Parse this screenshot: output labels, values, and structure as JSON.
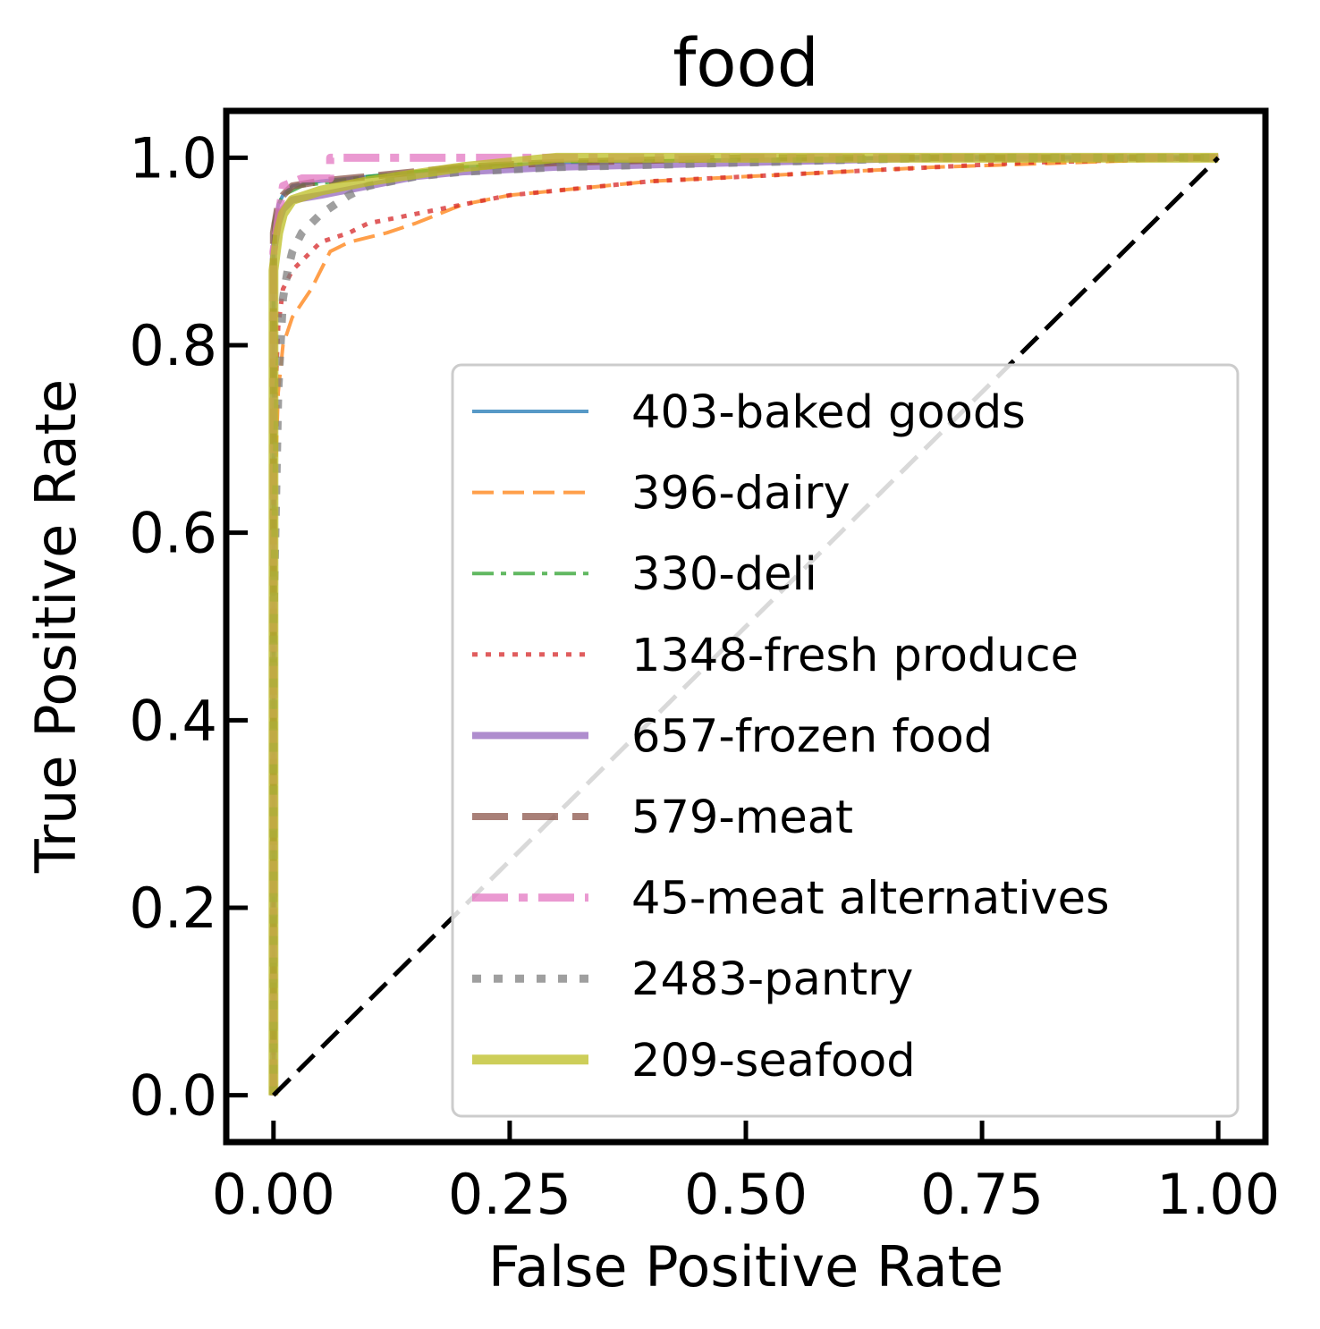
{
  "chart_data": {
    "type": "line",
    "title": "food",
    "xlabel": "False Positive Rate",
    "ylabel": "True Positive Rate",
    "xlim": [
      -0.05,
      1.05
    ],
    "ylim": [
      -0.05,
      1.05
    ],
    "xticks": [
      "0.00",
      "0.25",
      "0.50",
      "0.75",
      "1.00"
    ],
    "yticks": [
      "0.0",
      "0.2",
      "0.4",
      "0.6",
      "0.8",
      "1.0"
    ],
    "grid": false,
    "legend_position": "lower-right",
    "diagonal": {
      "x": [
        0,
        1
      ],
      "y": [
        0,
        1
      ],
      "color": "#000000",
      "style": "dashed"
    },
    "series": [
      {
        "name": "403-baked goods",
        "color": "#1f77b4",
        "dash": "solid",
        "width": 4,
        "x": [
          0,
          0,
          0.005,
          0.01,
          0.02,
          0.05,
          0.1,
          0.2,
          0.3,
          0.5,
          0.7,
          1.0
        ],
        "y": [
          0,
          0.92,
          0.95,
          0.96,
          0.97,
          0.975,
          0.98,
          0.99,
          0.995,
          0.998,
          1.0,
          1.0
        ]
      },
      {
        "name": "396-dairy",
        "color": "#ff7f0e",
        "dash": "dashed",
        "width": 4,
        "x": [
          0,
          0,
          0.005,
          0.01,
          0.02,
          0.04,
          0.06,
          0.08,
          0.12,
          0.15,
          0.2,
          0.25,
          0.3,
          0.4,
          0.5,
          0.7,
          1.0
        ],
        "y": [
          0,
          0.6,
          0.75,
          0.8,
          0.83,
          0.86,
          0.9,
          0.91,
          0.92,
          0.93,
          0.95,
          0.96,
          0.965,
          0.975,
          0.98,
          0.99,
          1.0
        ]
      },
      {
        "name": "330-deli",
        "color": "#2ca02c",
        "dash": "dashdot",
        "width": 4,
        "x": [
          0,
          0,
          0.005,
          0.01,
          0.03,
          0.1,
          0.2,
          0.3,
          0.5,
          0.7,
          1.0
        ],
        "y": [
          0,
          0.93,
          0.95,
          0.96,
          0.97,
          0.98,
          0.99,
          0.995,
          0.998,
          1.0,
          1.0
        ]
      },
      {
        "name": "1348-fresh produce",
        "color": "#d62728",
        "dash": "dotted",
        "width": 5,
        "x": [
          0,
          0,
          0.005,
          0.01,
          0.02,
          0.03,
          0.05,
          0.08,
          0.1,
          0.15,
          0.2,
          0.25,
          0.3,
          0.4,
          0.5,
          0.6,
          0.8,
          1.0
        ],
        "y": [
          0,
          0.7,
          0.82,
          0.86,
          0.88,
          0.89,
          0.91,
          0.92,
          0.93,
          0.94,
          0.95,
          0.96,
          0.965,
          0.975,
          0.98,
          0.985,
          0.995,
          1.0
        ]
      },
      {
        "name": "657-frozen food",
        "color": "#9467bd",
        "dash": "solid",
        "width": 8,
        "x": [
          0,
          0,
          0.005,
          0.01,
          0.02,
          0.05,
          0.1,
          0.15,
          0.2,
          0.3,
          0.5,
          0.7,
          1.0
        ],
        "y": [
          0,
          0.9,
          0.93,
          0.945,
          0.955,
          0.96,
          0.97,
          0.98,
          0.985,
          0.99,
          0.995,
          1.0,
          1.0
        ]
      },
      {
        "name": "579-meat",
        "color": "#8c564b",
        "dash": "longdash",
        "width": 8,
        "x": [
          0,
          0,
          0.005,
          0.01,
          0.02,
          0.05,
          0.1,
          0.2,
          0.3,
          0.5,
          1.0
        ],
        "y": [
          0,
          0.92,
          0.95,
          0.96,
          0.97,
          0.975,
          0.98,
          0.99,
          0.995,
          1.0,
          1.0
        ]
      },
      {
        "name": "45-meat alternatives",
        "color": "#e377c2",
        "dash": "dashdot-wide",
        "width": 9,
        "x": [
          0,
          0,
          0.01,
          0.03,
          0.06,
          0.06,
          0.1,
          0.3,
          1.0
        ],
        "y": [
          0,
          0.9,
          0.97,
          0.978,
          0.978,
          1.0,
          1.0,
          1.0,
          1.0
        ]
      },
      {
        "name": "2483-pantry",
        "color": "#7f7f7f",
        "dash": "dotted-wide",
        "width": 9,
        "x": [
          0,
          0,
          0.005,
          0.01,
          0.015,
          0.02,
          0.03,
          0.05,
          0.08,
          0.1,
          0.15,
          0.2,
          0.3,
          0.5,
          0.7,
          1.0
        ],
        "y": [
          0,
          0.5,
          0.75,
          0.85,
          0.88,
          0.9,
          0.92,
          0.94,
          0.96,
          0.97,
          0.98,
          0.985,
          0.99,
          0.995,
          1.0,
          1.0
        ]
      },
      {
        "name": "209-seafood",
        "color": "#bcbd22",
        "dash": "solid",
        "width": 11,
        "x": [
          0,
          0,
          0.005,
          0.01,
          0.02,
          0.05,
          0.1,
          0.2,
          0.3,
          0.5,
          1.0
        ],
        "y": [
          0,
          0.88,
          0.92,
          0.94,
          0.955,
          0.965,
          0.975,
          0.99,
          1.0,
          1.0,
          1.0
        ]
      }
    ]
  }
}
